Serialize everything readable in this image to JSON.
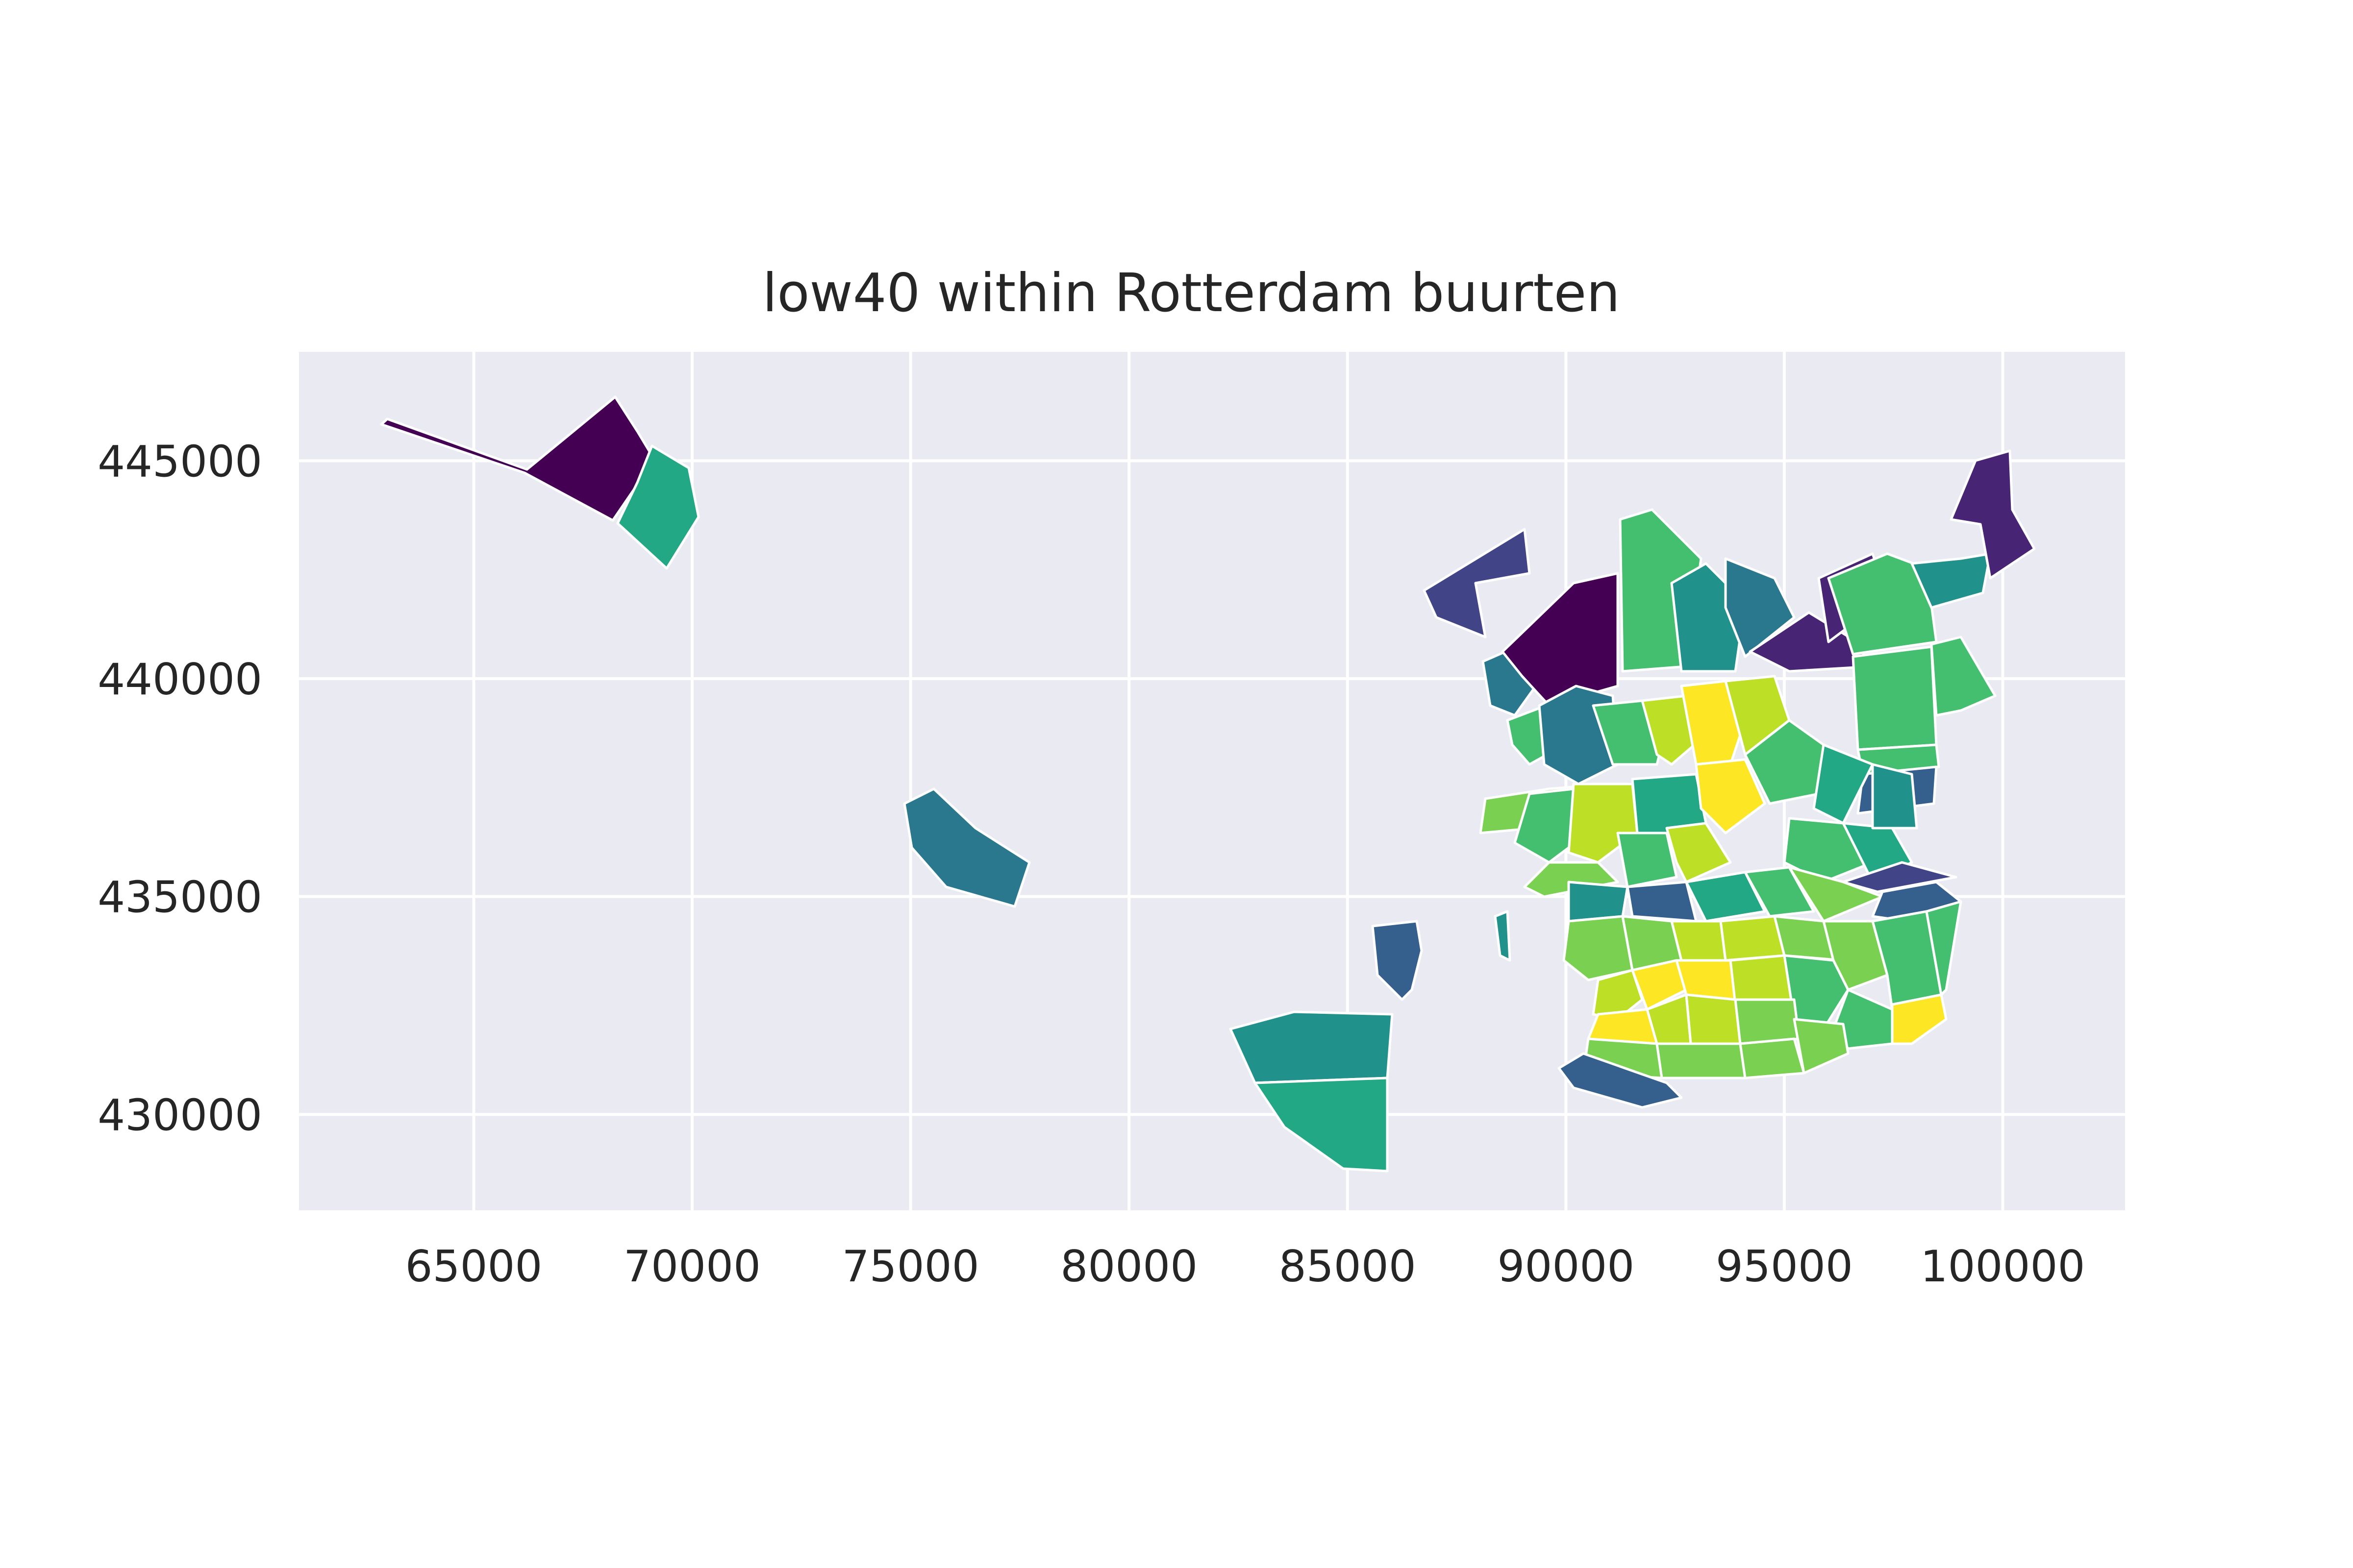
{
  "chart_data": {
    "type": "choropleth",
    "title": "low40 within Rotterdam buurten",
    "xlabel": "",
    "ylabel": "",
    "xlim": [
      61000,
      102800
    ],
    "ylim": [
      427800,
      447500
    ],
    "x_ticks": [
      65000,
      70000,
      75000,
      80000,
      85000,
      90000,
      95000,
      100000
    ],
    "y_ticks": [
      430000,
      435000,
      440000,
      445000
    ],
    "x_tick_labels": [
      "65000",
      "70000",
      "75000",
      "80000",
      "85000",
      "90000",
      "95000",
      "100000"
    ],
    "y_tick_labels": [
      "430000",
      "435000",
      "440000",
      "445000"
    ],
    "grid": true,
    "colormap": "viridis",
    "colors": {
      "plot_background": "#eaeaf2",
      "grid": "#ffffff",
      "region_edge": "#ffffff",
      "text": "#262626"
    }
  }
}
